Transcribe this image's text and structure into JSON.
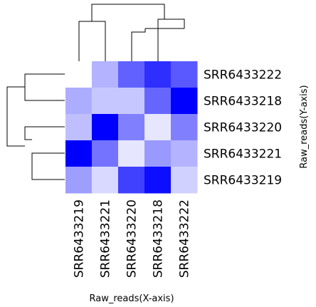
{
  "chart_data": {
    "type": "heatmap",
    "xlabel": "Raw_reads(X-axis)",
    "ylabel": "Raw_reads(Y-axis)",
    "columns": [
      "SRR6433219",
      "SRR6433221",
      "SRR6433220",
      "SRR6433218",
      "SRR6433222"
    ],
    "rows": [
      "SRR6433222",
      "SRR6433218",
      "SRR6433220",
      "SRR6433221",
      "SRR6433219"
    ],
    "values": [
      [
        0.0,
        0.3,
        0.62,
        0.82,
        0.65
      ],
      [
        0.32,
        0.22,
        0.22,
        0.6,
        1.0
      ],
      [
        0.25,
        1.0,
        0.5,
        0.1,
        0.5
      ],
      [
        1.0,
        0.55,
        0.1,
        0.4,
        0.3
      ],
      [
        0.38,
        0.15,
        0.75,
        0.95,
        0.18
      ]
    ],
    "value_scale": "relative intensity 0-1 (white to blue)",
    "colors": {
      "low": "#ffffff",
      "high": "#0000ff"
    },
    "dendrogram_top": "left branch: SRR6433219+SRR6433221; right branch: SRR6433220 joined with (SRR6433218+SRR6433222)",
    "dendrogram_left": "top branch: SRR6433222+SRR6433218; bottom branch: SRR6433220 joined with (SRR6433221+SRR6433219)"
  }
}
